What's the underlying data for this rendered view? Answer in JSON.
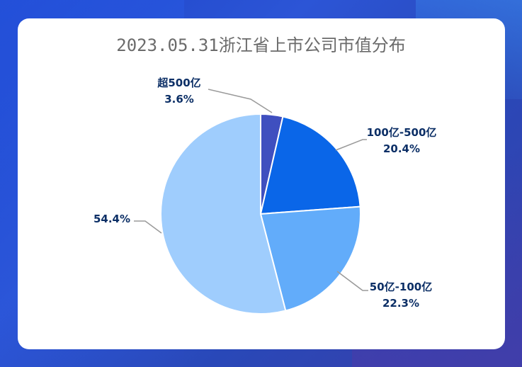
{
  "chart_data": {
    "type": "pie",
    "title": "2023.05.31浙江省上市公司市值分布",
    "slices": [
      {
        "label": "超500亿",
        "value": 3.6,
        "pct_text": "3.6%",
        "color": "#3f4fbf"
      },
      {
        "label": "100亿-500亿",
        "value": 20.4,
        "pct_text": "20.4%",
        "color": "#0a66e8"
      },
      {
        "label": "50亿-100亿",
        "value": 22.3,
        "pct_text": "22.3%",
        "color": "#62acfa"
      },
      {
        "label": "",
        "value": 54.4,
        "pct_text": "54.4%",
        "color": "#9fcdfd"
      }
    ]
  }
}
